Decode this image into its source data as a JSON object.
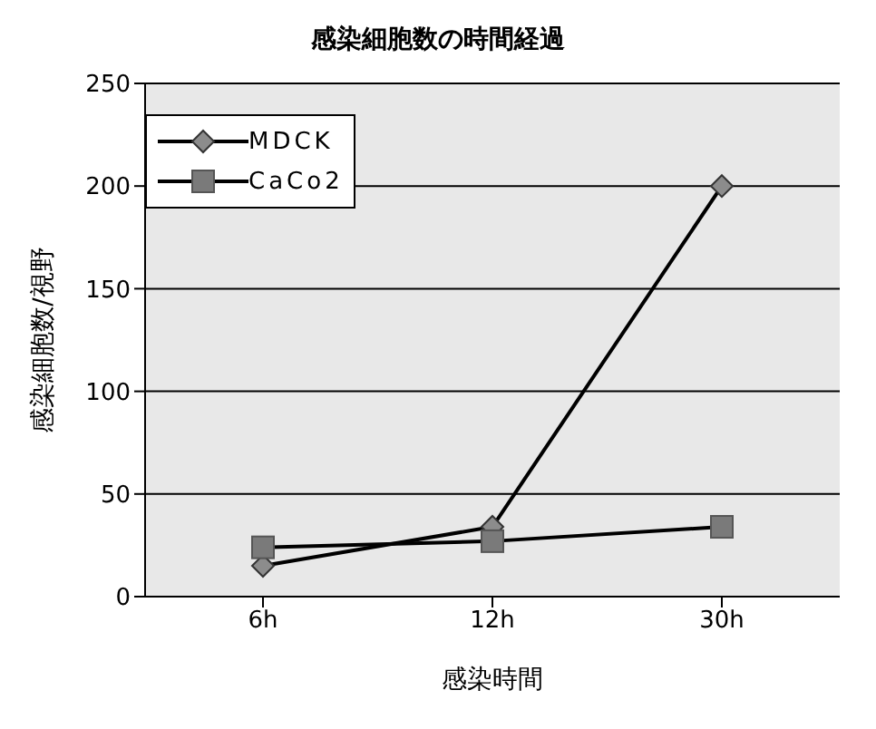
{
  "chart_data": {
    "type": "line",
    "title": "感染細胞数の時間経過",
    "xlabel": "感染時間",
    "ylabel": "感染細胞数/視野",
    "categories": [
      "6h",
      "12h",
      "30h"
    ],
    "series": [
      {
        "name": "MDCK",
        "color": "#8c8c8c",
        "marker": "diamond",
        "values": [
          15,
          34,
          200
        ]
      },
      {
        "name": "CaCo2",
        "color": "#7a7a7a",
        "marker": "square",
        "values": [
          24,
          27,
          34
        ]
      }
    ],
    "ylim": [
      0,
      250
    ],
    "yticks": [
      0,
      50,
      100,
      150,
      200,
      250
    ],
    "grid": "y",
    "legend": "top left"
  }
}
